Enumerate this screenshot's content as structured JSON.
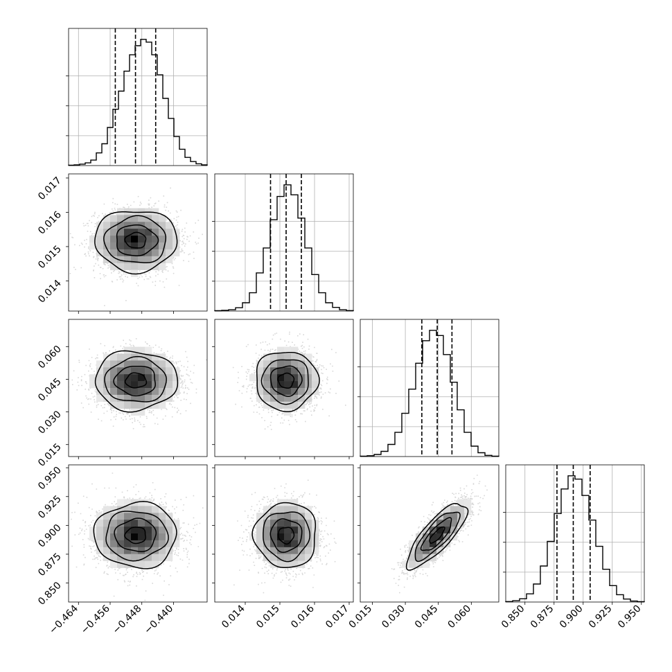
{
  "chart_data": {
    "type": "corner",
    "title": "",
    "grid": true,
    "colors": {
      "line": "#000000",
      "grid": "#b0b0b0",
      "scatter": "#8c8c8c",
      "density_max": "#000000",
      "density_min": "#ffffff"
    },
    "parameters": [
      {
        "index": 0,
        "range": [
          -0.4665,
          -0.4315
        ],
        "ticks": [
          -0.464,
          -0.456,
          -0.448,
          -0.44
        ],
        "tick_labels": [
          "−0.464",
          "−0.456",
          "−0.448",
          "−0.440"
        ],
        "mean": -0.4495,
        "sd": 0.0052,
        "quantiles": [
          -0.4547,
          -0.4496,
          -0.4445
        ],
        "histogram_counts": [
          2,
          4,
          8,
          15,
          30,
          70,
          120,
          210,
          310,
          410,
          520,
          610,
          660,
          695,
          680,
          610,
          500,
          370,
          260,
          160,
          90,
          45,
          22,
          10,
          4
        ]
      },
      {
        "index": 1,
        "range": [
          0.01312,
          0.01712
        ],
        "ticks": [
          0.014,
          0.015,
          0.016,
          0.017
        ],
        "tick_labels": [
          "0.014",
          "0.015",
          "0.016",
          "0.017"
        ],
        "mean": 0.01518,
        "sd": 0.00045,
        "quantiles": [
          0.01473,
          0.01518,
          0.01562
        ],
        "histogram_counts": [
          2,
          4,
          8,
          20,
          50,
          110,
          230,
          380,
          550,
          690,
          760,
          700,
          560,
          380,
          220,
          110,
          50,
          22,
          8,
          3
        ]
      },
      {
        "index": 2,
        "range": [
          0.0095,
          0.0725
        ],
        "ticks": [
          0.015,
          0.03,
          0.045,
          0.06
        ],
        "tick_labels": [
          "0.015",
          "0.030",
          "0.045",
          "0.060"
        ],
        "mean": 0.0444,
        "sd": 0.0068,
        "quantiles": [
          0.0375,
          0.0445,
          0.0512
        ],
        "histogram_counts": [
          2,
          5,
          12,
          30,
          70,
          140,
          250,
          390,
          540,
          670,
          730,
          700,
          590,
          430,
          270,
          140,
          60,
          22,
          7,
          2
        ]
      },
      {
        "index": 3,
        "range": [
          0.8335,
          0.9525
        ],
        "ticks": [
          0.85,
          0.875,
          0.9,
          0.925,
          0.95
        ],
        "tick_labels": [
          "0.850",
          "0.875",
          "0.900",
          "0.925",
          "0.950"
        ],
        "mean": 0.8915,
        "sd": 0.0141,
        "quantiles": [
          0.8775,
          0.8915,
          0.906
        ],
        "histogram_counts": [
          3,
          8,
          20,
          50,
          110,
          220,
          370,
          540,
          690,
          770,
          750,
          650,
          500,
          340,
          200,
          100,
          45,
          18,
          6,
          2
        ]
      }
    ],
    "correlations": {
      "2-3": 0.8
    },
    "contour_levels": [
      0.118,
      0.393,
      0.675,
      0.864
    ]
  }
}
